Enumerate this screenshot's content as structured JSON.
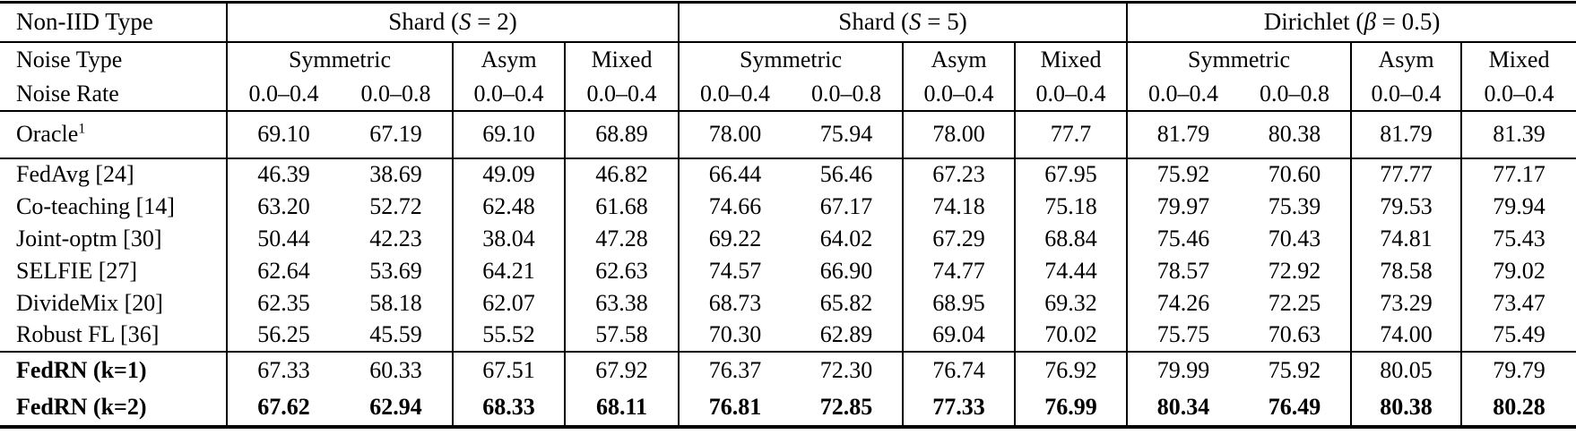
{
  "colors": {
    "text": "#000000",
    "background": "#ffffff",
    "rule": "#000000"
  },
  "table": {
    "corner_header": "Non-IID Type",
    "noise_type_label": "Noise Type",
    "noise_rate_label": "Noise Rate",
    "groups": [
      {
        "prefix": "Shard (",
        "sym": "S",
        "suffix": " = 2)"
      },
      {
        "prefix": "Shard (",
        "sym": "S",
        "suffix": " = 5)"
      },
      {
        "prefix": "Dirichlet (",
        "sym": "β",
        "suffix": " = 0.5)"
      }
    ],
    "noise_types": [
      "Symmetric",
      "Asym",
      "Mixed"
    ],
    "noise_rates": [
      "0.0–0.4",
      "0.0–0.8",
      "0.0–0.4",
      "0.0–0.4"
    ],
    "body_sections": [
      {
        "kind": "oracle",
        "rows": [
          {
            "label": "Oracle",
            "sup": "1",
            "values": [
              "69.10",
              "67.19",
              "69.10",
              "68.89",
              "78.00",
              "75.94",
              "78.00",
              "77.7",
              "81.79",
              "80.38",
              "81.79",
              "81.39"
            ]
          }
        ]
      },
      {
        "kind": "methods",
        "rows": [
          {
            "label": "FedAvg [24]",
            "values": [
              "46.39",
              "38.69",
              "49.09",
              "46.82",
              "66.44",
              "56.46",
              "67.23",
              "67.95",
              "75.92",
              "70.60",
              "77.77",
              "77.17"
            ]
          },
          {
            "label": "Co-teaching [14]",
            "values": [
              "63.20",
              "52.72",
              "62.48",
              "61.68",
              "74.66",
              "67.17",
              "74.18",
              "75.18",
              "79.97",
              "75.39",
              "79.53",
              "79.94"
            ]
          },
          {
            "label": "Joint-optm [30]",
            "values": [
              "50.44",
              "42.23",
              "38.04",
              "47.28",
              "69.22",
              "64.02",
              "67.29",
              "68.84",
              "75.46",
              "70.43",
              "74.81",
              "75.43"
            ]
          },
          {
            "label": "SELFIE [27]",
            "values": [
              "62.64",
              "53.69",
              "64.21",
              "62.63",
              "74.57",
              "66.90",
              "74.77",
              "74.44",
              "78.57",
              "72.92",
              "78.58",
              "79.02"
            ]
          },
          {
            "label": "DivideMix [20]",
            "values": [
              "62.35",
              "58.18",
              "62.07",
              "63.38",
              "68.73",
              "65.82",
              "68.95",
              "69.32",
              "74.26",
              "72.25",
              "73.29",
              "73.47"
            ]
          },
          {
            "label": "Robust FL [36]",
            "values": [
              "56.25",
              "45.59",
              "55.52",
              "57.58",
              "70.30",
              "62.89",
              "69.04",
              "70.02",
              "75.75",
              "70.63",
              "74.00",
              "75.49"
            ]
          }
        ]
      },
      {
        "kind": "fedrn",
        "rows": [
          {
            "label": "FedRN (k=1)",
            "bold_label": true,
            "bold_values": false,
            "values": [
              "67.33",
              "60.33",
              "67.51",
              "67.92",
              "76.37",
              "72.30",
              "76.74",
              "76.92",
              "79.99",
              "75.92",
              "80.05",
              "79.79"
            ]
          },
          {
            "label": "FedRN (k=2)",
            "bold_label": true,
            "bold_values": true,
            "values": [
              "67.62",
              "62.94",
              "68.33",
              "68.11",
              "76.81",
              "72.85",
              "77.33",
              "76.99",
              "80.34",
              "76.49",
              "80.38",
              "80.28"
            ]
          }
        ]
      }
    ]
  }
}
